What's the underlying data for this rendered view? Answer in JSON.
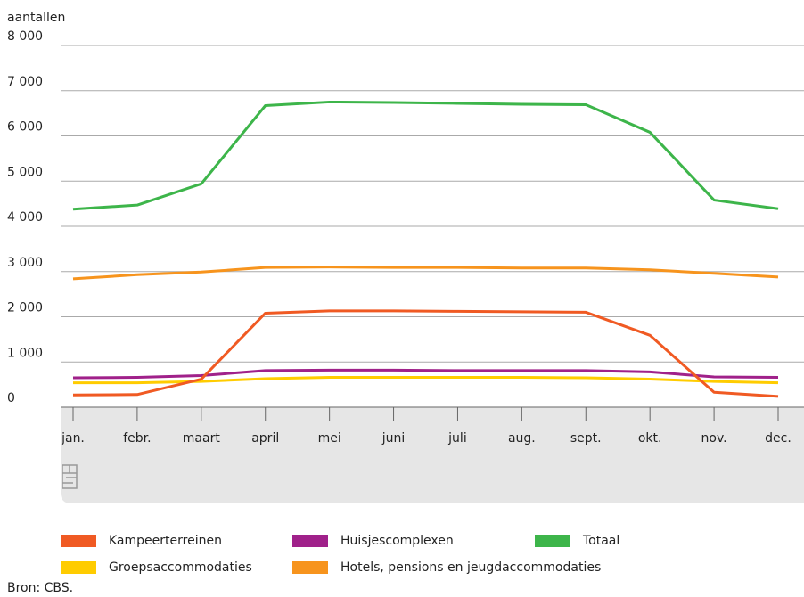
{
  "chart_data": {
    "type": "line",
    "y_axis_label": "aantallen",
    "source": "Bron: CBS.",
    "categories": [
      "jan.",
      "febr.",
      "maart",
      "april",
      "mei",
      "juni",
      "juli",
      "aug.",
      "sept.",
      "okt.",
      "nov.",
      "dec."
    ],
    "series": [
      {
        "name": "Kampeerterreinen",
        "color": "#f05a23",
        "values": [
          270,
          280,
          620,
          2080,
          2130,
          2130,
          2120,
          2110,
          2100,
          1590,
          330,
          240
        ]
      },
      {
        "name": "Huisjescomplexen",
        "color": "#a0218a",
        "values": [
          650,
          660,
          700,
          810,
          820,
          820,
          810,
          810,
          810,
          780,
          670,
          660
        ]
      },
      {
        "name": "Totaal",
        "color": "#3db54a",
        "values": [
          4380,
          4470,
          4940,
          6670,
          6750,
          6740,
          6720,
          6700,
          6690,
          6080,
          4580,
          4390
        ]
      },
      {
        "name": "Groepsaccommodaties",
        "color": "#ffcc00",
        "values": [
          540,
          540,
          570,
          630,
          660,
          660,
          660,
          660,
          650,
          620,
          570,
          540
        ]
      },
      {
        "name": "Hotels, pensions en jeugdaccommodaties",
        "color": "#f7941d",
        "values": [
          2840,
          2930,
          2990,
          3090,
          3100,
          3090,
          3090,
          3080,
          3080,
          3040,
          2960,
          2880
        ]
      }
    ],
    "ylim": [
      0,
      8000
    ],
    "yticks": [
      0,
      {
        "value": 1000,
        "label": "1 000"
      },
      {
        "value": 2000,
        "label": "2 000"
      },
      {
        "value": 3000,
        "label": "3 000"
      },
      {
        "value": 4000,
        "label": "4 000"
      },
      {
        "value": 5000,
        "label": "5 000"
      },
      {
        "value": 6000,
        "label": "6 000"
      },
      {
        "value": 7000,
        "label": "7 000"
      },
      {
        "value": 8000,
        "label": "8 000"
      }
    ],
    "grid": true
  }
}
